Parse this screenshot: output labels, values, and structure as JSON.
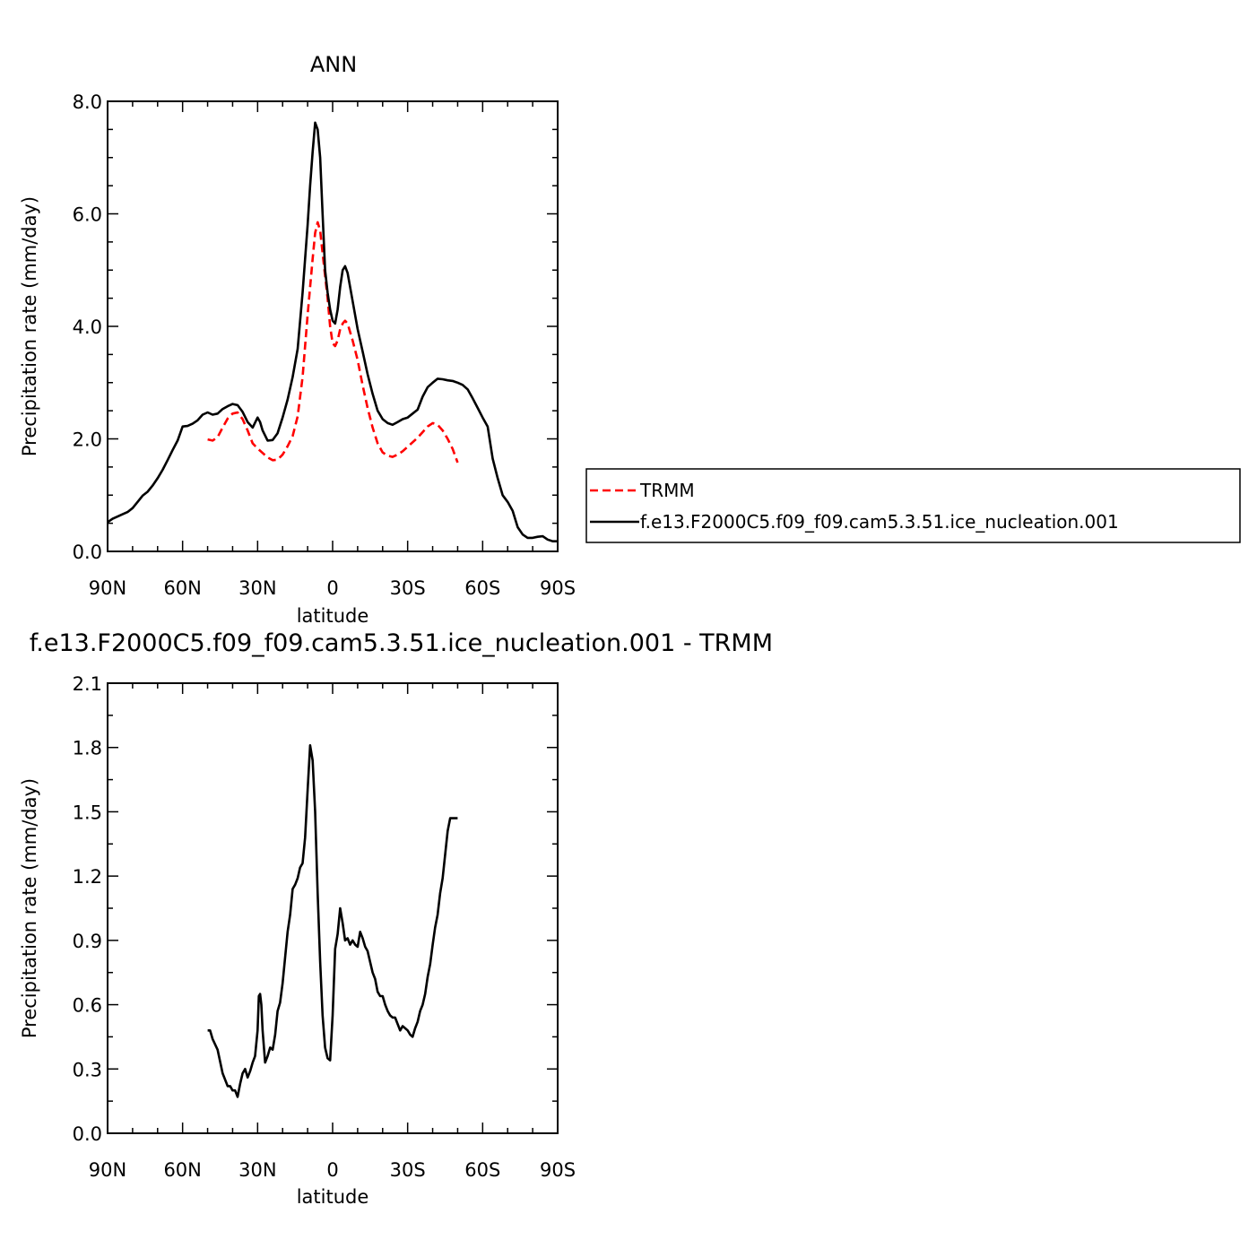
{
  "chart_data": [
    {
      "type": "line",
      "title": "ANN",
      "xlabel": "latitude",
      "ylabel": "Precipitation rate (mm/day)",
      "xlim": [
        90,
        -90
      ],
      "ylim": [
        0,
        8
      ],
      "y_ticks": [
        "0.0",
        "2.0",
        "4.0",
        "6.0",
        "8.0"
      ],
      "x_ticks": [
        {
          "value": 90,
          "label": "90N"
        },
        {
          "value": 60,
          "label": "60N"
        },
        {
          "value": 30,
          "label": "30N"
        },
        {
          "value": 0,
          "label": "0"
        },
        {
          "value": -30,
          "label": "30S"
        },
        {
          "value": -60,
          "label": "60S"
        },
        {
          "value": -90,
          "label": "90S"
        }
      ],
      "legend_position": "right",
      "series": [
        {
          "name": "TRMM",
          "color": "#ff0000",
          "dash": "dashed",
          "x": [
            50,
            48,
            46,
            44,
            42,
            40,
            38,
            36,
            34,
            32,
            30,
            28,
            26,
            24,
            22,
            20,
            18,
            16,
            14,
            12,
            10,
            8,
            7,
            6,
            5,
            4,
            2,
            1,
            0,
            -1,
            -2,
            -3,
            -4,
            -5,
            -6,
            -8,
            -10,
            -12,
            -14,
            -16,
            -18,
            -20,
            -22,
            -24,
            -26,
            -28,
            -30,
            -32,
            -34,
            -36,
            -38,
            -40,
            -42,
            -44,
            -46,
            -48,
            -50
          ],
          "y": [
            1.99,
            1.97,
            2.03,
            2.2,
            2.36,
            2.45,
            2.47,
            2.35,
            2.15,
            1.92,
            1.83,
            1.75,
            1.67,
            1.62,
            1.63,
            1.72,
            1.87,
            2.05,
            2.4,
            3.1,
            4.2,
            5.2,
            5.66,
            5.85,
            5.7,
            5.3,
            4.5,
            4.0,
            3.7,
            3.65,
            3.75,
            3.95,
            4.05,
            4.1,
            4.05,
            3.75,
            3.4,
            2.95,
            2.55,
            2.2,
            1.92,
            1.76,
            1.7,
            1.68,
            1.72,
            1.78,
            1.86,
            1.94,
            2.02,
            2.12,
            2.22,
            2.28,
            2.25,
            2.15,
            2.0,
            1.82,
            1.58
          ]
        },
        {
          "name": "f.e13.F2000C5.f09_f09.cam5.3.51.ice_nucleation.001",
          "color": "#000000",
          "dash": "solid",
          "x": [
            90,
            88,
            86,
            84,
            82,
            80,
            78,
            76,
            74,
            72,
            70,
            68,
            66,
            64,
            62,
            60,
            58,
            56,
            54,
            52,
            50,
            48,
            46,
            44,
            42,
            40,
            38,
            36,
            34,
            32,
            30,
            29,
            28,
            26,
            24,
            22,
            20,
            18,
            16,
            14,
            12,
            10,
            9,
            8,
            7,
            6,
            5,
            4,
            3,
            2,
            1,
            0,
            -1,
            -2,
            -3,
            -4,
            -5,
            -6,
            -7,
            -8,
            -10,
            -12,
            -14,
            -16,
            -18,
            -20,
            -22,
            -24,
            -26,
            -28,
            -30,
            -32,
            -34,
            -36,
            -38,
            -40,
            -42,
            -44,
            -46,
            -48,
            -50,
            -52,
            -54,
            -56,
            -58,
            -60,
            -62,
            -64,
            -66,
            -68,
            -70,
            -72,
            -74,
            -76,
            -78,
            -80,
            -82,
            -84,
            -86,
            -88,
            -90
          ],
          "y": [
            0.52,
            0.58,
            0.62,
            0.66,
            0.7,
            0.77,
            0.88,
            0.99,
            1.06,
            1.17,
            1.3,
            1.45,
            1.62,
            1.8,
            1.97,
            2.22,
            2.23,
            2.27,
            2.33,
            2.43,
            2.47,
            2.43,
            2.45,
            2.53,
            2.58,
            2.62,
            2.6,
            2.48,
            2.3,
            2.2,
            2.38,
            2.3,
            2.15,
            1.97,
            1.98,
            2.1,
            2.38,
            2.7,
            3.1,
            3.6,
            4.6,
            5.8,
            6.5,
            7.1,
            7.62,
            7.5,
            7.0,
            6.0,
            5.0,
            4.6,
            4.3,
            4.1,
            4.05,
            4.3,
            4.7,
            5.0,
            5.07,
            4.95,
            4.7,
            4.45,
            3.95,
            3.55,
            3.15,
            2.8,
            2.5,
            2.35,
            2.28,
            2.25,
            2.3,
            2.35,
            2.38,
            2.45,
            2.52,
            2.75,
            2.92,
            3.0,
            3.07,
            3.06,
            3.04,
            3.03,
            3.0,
            2.96,
            2.88,
            2.72,
            2.55,
            2.38,
            2.22,
            1.65,
            1.3,
            1.0,
            0.88,
            0.72,
            0.43,
            0.3,
            0.24,
            0.24,
            0.26,
            0.27,
            0.21,
            0.18,
            0.18
          ]
        }
      ]
    },
    {
      "type": "line",
      "title": "f.e13.F2000C5.f09_f09.cam5.3.51.ice_nucleation.001 - TRMM",
      "xlabel": "latitude",
      "ylabel": "Precipitation rate (mm/day)",
      "xlim": [
        90,
        -90
      ],
      "ylim": [
        0,
        2.1
      ],
      "y_ticks": [
        "0.0",
        "0.3",
        "0.6",
        "0.9",
        "1.2",
        "1.5",
        "1.8",
        "2.1"
      ],
      "x_ticks": [
        {
          "value": 90,
          "label": "90N"
        },
        {
          "value": 60,
          "label": "60N"
        },
        {
          "value": 30,
          "label": "30N"
        },
        {
          "value": 0,
          "label": "0"
        },
        {
          "value": -30,
          "label": "30S"
        },
        {
          "value": -60,
          "label": "60S"
        },
        {
          "value": -90,
          "label": "90S"
        }
      ],
      "series": [
        {
          "color": "#000000",
          "dash": "solid",
          "x": [
            50,
            49,
            48,
            46,
            44,
            42,
            41,
            40,
            39,
            38,
            37,
            36,
            35,
            34,
            33,
            32,
            31,
            30,
            29.5,
            29,
            28.5,
            28,
            27,
            26,
            25,
            24,
            23,
            22,
            21,
            20,
            19,
            18,
            17,
            16,
            15,
            14,
            13,
            12,
            11,
            10,
            9,
            8,
            7,
            6,
            5,
            4,
            3,
            2,
            1,
            0,
            -1,
            -2,
            -3,
            -4,
            -5,
            -6,
            -7,
            -8,
            -9,
            -10,
            -11,
            -12,
            -13,
            -14,
            -15,
            -16,
            -17,
            -18,
            -19,
            -20,
            -21,
            -22,
            -23,
            -24,
            -25,
            -26,
            -27,
            -28,
            -29,
            -30,
            -31,
            -32,
            -33,
            -34,
            -35,
            -36,
            -37,
            -38,
            -39,
            -40,
            -41,
            -42,
            -43,
            -44,
            -45,
            -46,
            -47,
            -48,
            -49,
            -50
          ],
          "y": [
            0.48,
            0.48,
            0.44,
            0.39,
            0.28,
            0.22,
            0.22,
            0.2,
            0.2,
            0.17,
            0.23,
            0.28,
            0.3,
            0.26,
            0.29,
            0.33,
            0.36,
            0.48,
            0.64,
            0.65,
            0.6,
            0.48,
            0.33,
            0.36,
            0.4,
            0.39,
            0.46,
            0.57,
            0.61,
            0.7,
            0.82,
            0.94,
            1.02,
            1.14,
            1.16,
            1.19,
            1.24,
            1.26,
            1.38,
            1.6,
            1.81,
            1.74,
            1.5,
            1.12,
            0.8,
            0.55,
            0.4,
            0.35,
            0.34,
            0.55,
            0.86,
            0.93,
            1.05,
            0.98,
            0.9,
            0.91,
            0.88,
            0.9,
            0.88,
            0.87,
            0.94,
            0.91,
            0.87,
            0.85,
            0.8,
            0.75,
            0.72,
            0.66,
            0.64,
            0.64,
            0.6,
            0.57,
            0.55,
            0.54,
            0.54,
            0.51,
            0.48,
            0.5,
            0.49,
            0.48,
            0.46,
            0.45,
            0.49,
            0.52,
            0.57,
            0.6,
            0.65,
            0.73,
            0.79,
            0.88,
            0.96,
            1.02,
            1.12,
            1.19,
            1.3,
            1.41,
            1.47,
            1.47,
            1.47,
            1.47
          ]
        }
      ]
    }
  ]
}
